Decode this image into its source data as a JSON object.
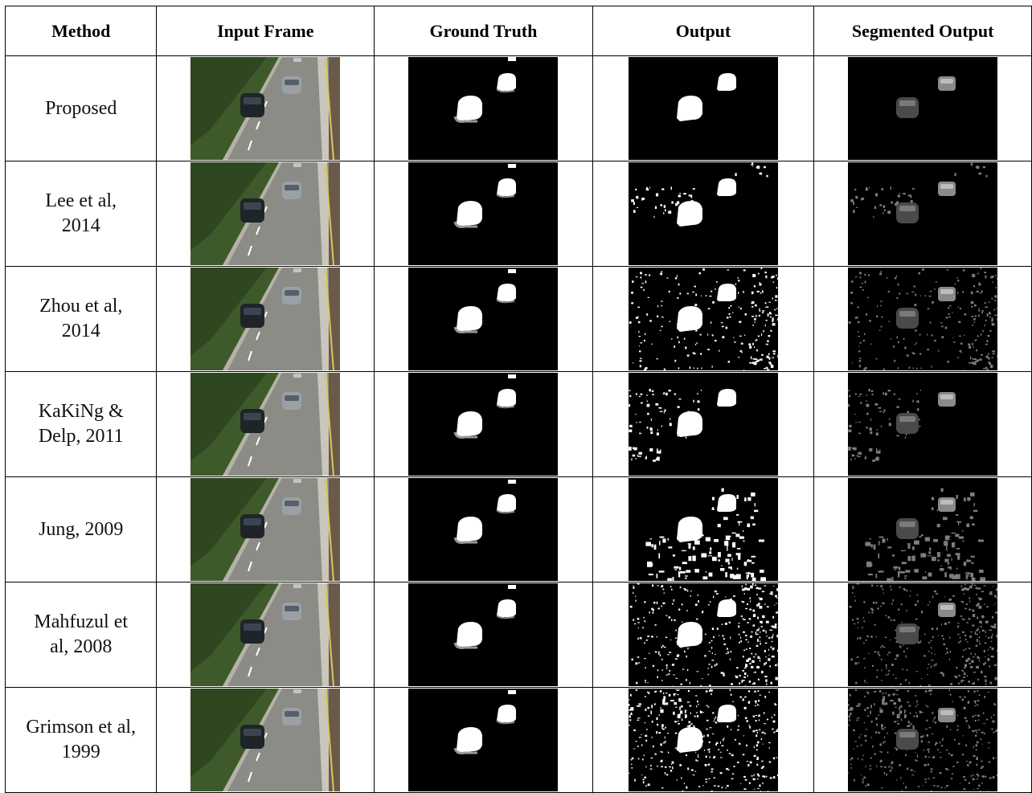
{
  "table": {
    "headers": [
      "Method",
      "Input Frame",
      "Ground Truth",
      "Output",
      "Segmented Output"
    ],
    "rows": [
      {
        "method_line1": "Proposed",
        "method_line2": "",
        "output_quality": "clean",
        "gt_top_blob": false
      },
      {
        "method_line1": "Lee  et al,",
        "method_line2": "2014",
        "output_quality": "sparse-noise",
        "gt_top_blob": true
      },
      {
        "method_line1": "Zhou et al,",
        "method_line2": "2014",
        "output_quality": "edge-noise",
        "gt_top_blob": true
      },
      {
        "method_line1": "KaKiNg &",
        "method_line2": "Delp, 2011",
        "output_quality": "fragmented",
        "gt_top_blob": true
      },
      {
        "method_line1": "Jung, 2009",
        "method_line2": "",
        "output_quality": "blocky-noise",
        "gt_top_blob": true
      },
      {
        "method_line1": "Mahfuzul et",
        "method_line2": "al, 2008",
        "output_quality": "heavy-edge-noise",
        "gt_top_blob": true
      },
      {
        "method_line1": "Grimson et al,",
        "method_line2": "1999",
        "output_quality": "heavy-noise",
        "gt_top_blob": true
      }
    ]
  },
  "colors": {
    "grass": "#3f5a2a",
    "road": "#8c8c86",
    "car_dark": "#1f2428",
    "car_light": "#9aa0a6",
    "mask_bg": "#000000",
    "mask_fg": "#ffffff"
  }
}
